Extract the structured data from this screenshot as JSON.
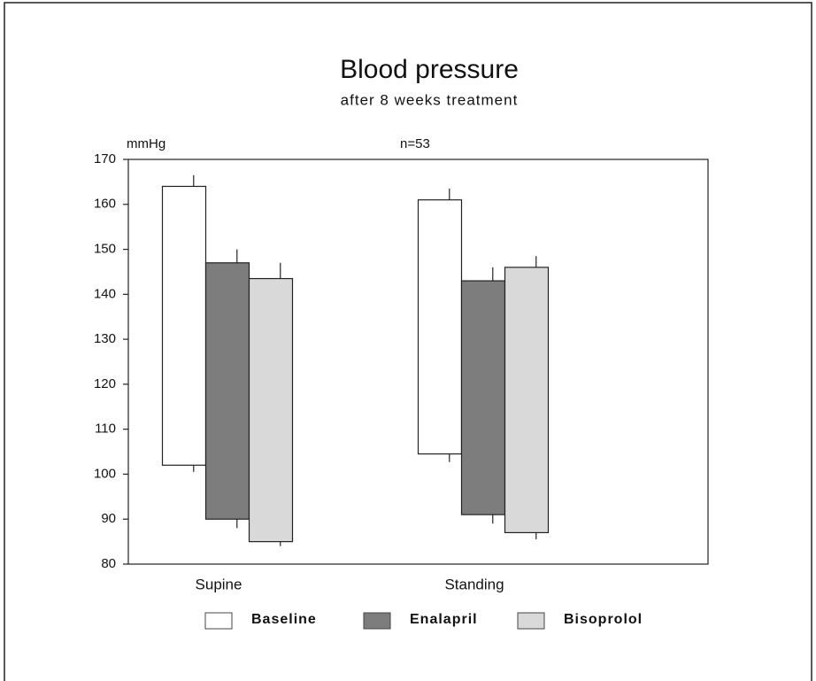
{
  "chart_data": {
    "type": "range_bar",
    "title": "Blood pressure",
    "subtitle": "after 8 weeks treatment",
    "y_label": "mmHg",
    "annotation": "n=53",
    "categories": [
      "Supine",
      "Standing"
    ],
    "series": [
      {
        "name": "Baseline",
        "color": "#ffffff",
        "highs": [
          164,
          161
        ],
        "lows": [
          102,
          104.5
        ],
        "high_errors": [
          2.5,
          2.5
        ],
        "low_errors": [
          1.5,
          1.8
        ]
      },
      {
        "name": "Enalapril",
        "color": "#7d7d7d",
        "highs": [
          147,
          143
        ],
        "lows": [
          90,
          91
        ],
        "high_errors": [
          3,
          3
        ],
        "low_errors": [
          2,
          2
        ]
      },
      {
        "name": "Bisoprolol",
        "color": "#d9d9d9",
        "highs": [
          143.5,
          146
        ],
        "lows": [
          85,
          87
        ],
        "high_errors": [
          3.5,
          2.5
        ],
        "low_errors": [
          1,
          1.5
        ]
      }
    ],
    "ylim": [
      80,
      170
    ],
    "yticks": [
      80,
      90,
      100,
      110,
      120,
      130,
      140,
      150,
      160,
      170
    ]
  }
}
